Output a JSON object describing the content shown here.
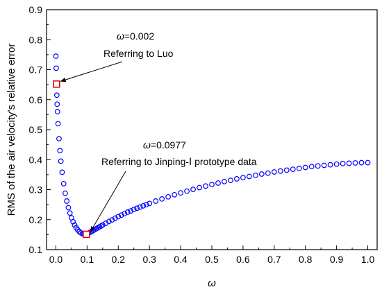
{
  "chart_data": {
    "type": "scatter",
    "title": "",
    "xlabel": "ω",
    "ylabel": "RMS of the air velocity's relative error",
    "xlim": [
      -0.03,
      1.03
    ],
    "ylim": [
      0.1,
      0.9
    ],
    "xticks": [
      "0.0",
      "0.1",
      "0.2",
      "0.3",
      "0.4",
      "0.5",
      "0.6",
      "0.7",
      "0.8",
      "0.9",
      "1.0"
    ],
    "yticks": [
      "0.1",
      "0.2",
      "0.3",
      "0.4",
      "0.5",
      "0.6",
      "0.7",
      "0.8",
      "0.9"
    ],
    "grid": false,
    "series": [
      {
        "marker": "open-circle",
        "color": "#0000ff",
        "x": [
          0.0,
          0.001,
          0.002,
          0.003,
          0.004,
          0.005,
          0.007,
          0.01,
          0.013,
          0.016,
          0.02,
          0.025,
          0.03,
          0.035,
          0.04,
          0.045,
          0.05,
          0.055,
          0.06,
          0.065,
          0.07,
          0.075,
          0.08,
          0.085,
          0.09,
          0.0977,
          0.105,
          0.11,
          0.115,
          0.12,
          0.125,
          0.13,
          0.135,
          0.14,
          0.145,
          0.15,
          0.16,
          0.17,
          0.18,
          0.19,
          0.2,
          0.21,
          0.22,
          0.23,
          0.24,
          0.25,
          0.26,
          0.27,
          0.28,
          0.29,
          0.3,
          0.32,
          0.34,
          0.36,
          0.38,
          0.4,
          0.42,
          0.44,
          0.46,
          0.48,
          0.5,
          0.52,
          0.54,
          0.56,
          0.58,
          0.6,
          0.62,
          0.64,
          0.66,
          0.68,
          0.7,
          0.72,
          0.74,
          0.76,
          0.78,
          0.8,
          0.82,
          0.84,
          0.86,
          0.88,
          0.9,
          0.92,
          0.94,
          0.96,
          0.98,
          1.0
        ],
        "y": [
          0.745,
          0.705,
          0.652,
          0.615,
          0.585,
          0.56,
          0.52,
          0.47,
          0.43,
          0.395,
          0.358,
          0.32,
          0.288,
          0.262,
          0.24,
          0.222,
          0.206,
          0.193,
          0.182,
          0.173,
          0.166,
          0.16,
          0.156,
          0.153,
          0.151,
          0.151,
          0.155,
          0.158,
          0.161,
          0.164,
          0.167,
          0.17,
          0.173,
          0.176,
          0.179,
          0.182,
          0.188,
          0.194,
          0.199,
          0.205,
          0.21,
          0.215,
          0.22,
          0.225,
          0.229,
          0.234,
          0.238,
          0.242,
          0.246,
          0.25,
          0.254,
          0.262,
          0.269,
          0.276,
          0.283,
          0.289,
          0.295,
          0.301,
          0.307,
          0.312,
          0.317,
          0.322,
          0.327,
          0.331,
          0.336,
          0.34,
          0.344,
          0.348,
          0.352,
          0.355,
          0.359,
          0.362,
          0.365,
          0.368,
          0.371,
          0.374,
          0.377,
          0.379,
          0.381,
          0.383,
          0.385,
          0.387,
          0.388,
          0.389,
          0.39,
          0.39
        ]
      }
    ],
    "highlights": [
      {
        "x": 0.002,
        "y": 0.652,
        "color": "#e8000b"
      },
      {
        "x": 0.0977,
        "y": 0.151,
        "color": "#e8000b"
      }
    ],
    "annotations": [
      {
        "label": "ω=0.002",
        "text": "Referring to Luo",
        "target_x": 0.002,
        "target_y": 0.652
      },
      {
        "label": "ω=0.0977",
        "text": "Referring to Jinping-Ⅰ prototype data",
        "target_x": 0.0977,
        "target_y": 0.151
      }
    ]
  }
}
